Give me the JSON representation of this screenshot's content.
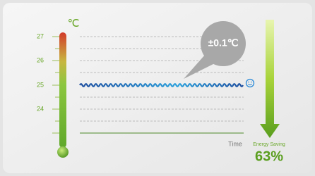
{
  "unit": "℃",
  "scale_labels": [
    "27",
    "26",
    "25",
    "24"
  ],
  "callout": "±0.1℃",
  "x_label": "Time",
  "saving_label": "Energy Saving",
  "saving_value": "63%"
}
